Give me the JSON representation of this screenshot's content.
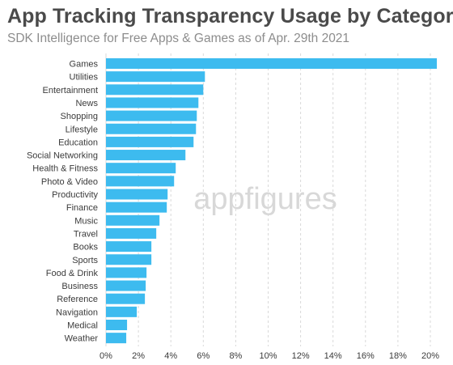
{
  "title": "App Tracking Transparency Usage by Category",
  "subtitle": "SDK Intelligence for Free Apps & Games as of Apr. 29th 2021",
  "watermark": "appfigures",
  "colors": {
    "bar": "#3dbbef",
    "grid": "#d9d9d9",
    "text": "#3b3b3b",
    "watermark": "#d8d8d8"
  },
  "chart_data": {
    "type": "bar",
    "orientation": "horizontal",
    "title": "App Tracking Transparency Usage by Category",
    "subtitle": "SDK Intelligence for Free Apps & Games as of Apr. 29th 2021",
    "categories": [
      "Games",
      "Utilities",
      "Entertainment",
      "News",
      "Shopping",
      "Lifestyle",
      "Education",
      "Social Networking",
      "Health & Fitness",
      "Photo & Video",
      "Productivity",
      "Finance",
      "Music",
      "Travel",
      "Books",
      "Sports",
      "Food & Drink",
      "Business",
      "Reference",
      "Navigation",
      "Medical",
      "Weather"
    ],
    "values": [
      20.4,
      6.1,
      6.0,
      5.7,
      5.6,
      5.55,
      5.4,
      4.9,
      4.3,
      4.2,
      3.8,
      3.75,
      3.3,
      3.1,
      2.8,
      2.8,
      2.5,
      2.45,
      2.4,
      1.9,
      1.3,
      1.25
    ],
    "unit": "%",
    "xlim": [
      0,
      20.5
    ],
    "xticks": [
      0,
      2,
      4,
      6,
      8,
      10,
      12,
      14,
      16,
      18,
      20
    ],
    "xtick_labels": [
      "0%",
      "2%",
      "4%",
      "6%",
      "8%",
      "10%",
      "12%",
      "14%",
      "16%",
      "18%",
      "20%"
    ],
    "grid": true,
    "legend": "none"
  }
}
